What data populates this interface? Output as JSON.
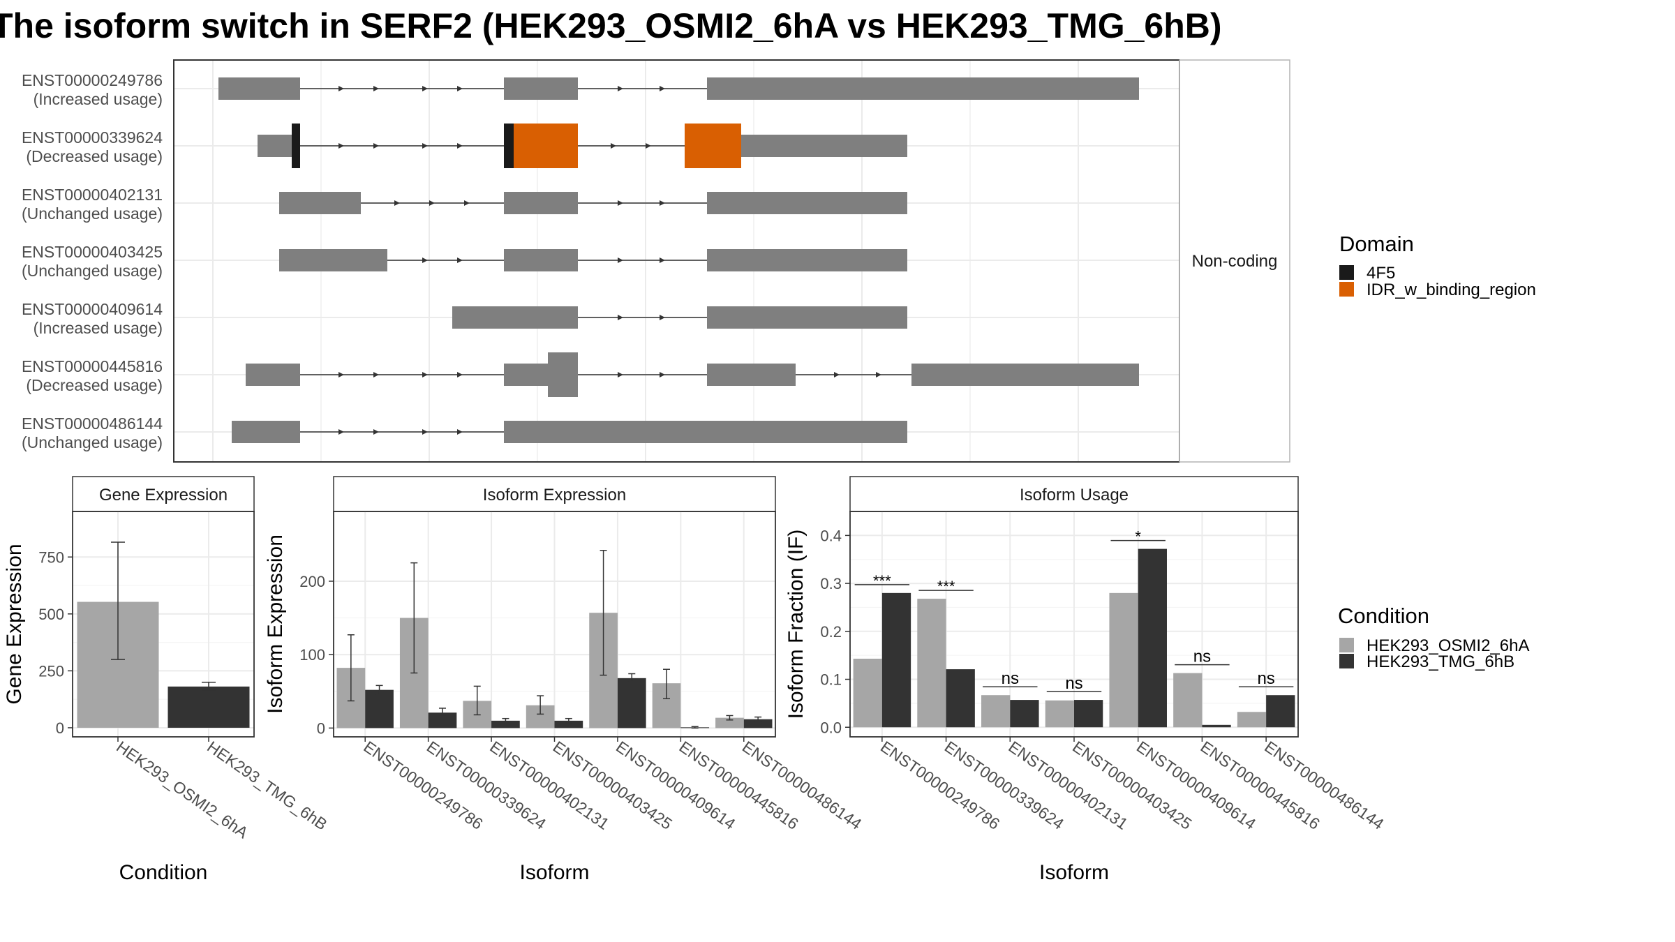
{
  "title": "The isoform switch in SERF2 (HEK293_OSMI2_6hA vs HEK293_TMG_6hB)",
  "colors": {
    "exon": "#7f7f7f",
    "domain_4F5": "#1a1a1a",
    "domain_IDR": "#d95f02",
    "cond_A": "#a6a6a6",
    "cond_B": "#333333",
    "grid": "#ebebeb",
    "strip": "#ffffff"
  },
  "structure": {
    "facet_label": "Non-coding",
    "isoforms": [
      {
        "id": "ENST00000249786",
        "status": "(Increased usage)"
      },
      {
        "id": "ENST00000339624",
        "status": "(Decreased usage)"
      },
      {
        "id": "ENST00000402131",
        "status": "(Unchanged usage)"
      },
      {
        "id": "ENST00000403425",
        "status": "(Unchanged usage)"
      },
      {
        "id": "ENST00000409614",
        "status": "(Increased usage)"
      },
      {
        "id": "ENST00000445816",
        "status": "(Decreased usage)"
      },
      {
        "id": "ENST00000486144",
        "status": "(Unchanged usage)"
      }
    ]
  },
  "legend_domain": {
    "title": "Domain",
    "items": [
      {
        "label": "4F5",
        "color": "#1a1a1a"
      },
      {
        "label": "IDR_w_binding_region",
        "color": "#d95f02"
      }
    ]
  },
  "legend_condition": {
    "title": "Condition",
    "items": [
      {
        "label": "HEK293_OSMI2_6hA",
        "color": "#a6a6a6"
      },
      {
        "label": "HEK293_TMG_6hB",
        "color": "#333333"
      }
    ]
  },
  "chart_data": [
    {
      "type": "bar",
      "title": "Gene Expression",
      "xlabel": "Condition",
      "ylabel": "Gene Expression",
      "categories": [
        "HEK293_OSMI2_6hA",
        "HEK293_TMG_6hB"
      ],
      "values": [
        553,
        181
      ],
      "error": [
        [
          300,
          815
        ],
        [
          165,
          200
        ]
      ],
      "yticks": [
        0,
        250,
        500,
        750
      ],
      "ylim": [
        -40,
        950
      ]
    },
    {
      "type": "bar",
      "title": "Isoform Expression",
      "xlabel": "Isoform",
      "ylabel": "Isoform Expression",
      "categories": [
        "ENST00000249786",
        "ENST00000339624",
        "ENST00000402131",
        "ENST00000403425",
        "ENST00000409614",
        "ENST00000445816",
        "ENST00000486144"
      ],
      "series": [
        {
          "name": "HEK293_OSMI2_6hA",
          "values": [
            82,
            150,
            37,
            31,
            157,
            61,
            14
          ],
          "error": [
            [
              37,
              127
            ],
            [
              75,
              225
            ],
            [
              18,
              57
            ],
            [
              19,
              44
            ],
            [
              72,
              242
            ],
            [
              40,
              80
            ],
            [
              11,
              17
            ]
          ]
        },
        {
          "name": "HEK293_TMG_6hB",
          "values": [
            52,
            21,
            10,
            10,
            68,
            1,
            12
          ],
          "error": [
            [
              46,
              58
            ],
            [
              16,
              27
            ],
            [
              6,
              13
            ],
            [
              7,
              13
            ],
            [
              63,
              74
            ],
            [
              0,
              2
            ],
            [
              9,
              15
            ]
          ]
        }
      ],
      "yticks": [
        0,
        100,
        200
      ],
      "ylim": [
        -12,
        295
      ]
    },
    {
      "type": "bar",
      "title": "Isoform Usage",
      "xlabel": "Isoform",
      "ylabel": "Isoform Fraction (IF)",
      "categories": [
        "ENST00000249786",
        "ENST00000339624",
        "ENST00000402131",
        "ENST00000403425",
        "ENST00000409614",
        "ENST00000445816",
        "ENST00000486144"
      ],
      "series": [
        {
          "name": "HEK293_OSMI2_6hA",
          "values": [
            0.143,
            0.268,
            0.067,
            0.056,
            0.28,
            0.113,
            0.032
          ]
        },
        {
          "name": "HEK293_TMG_6hB",
          "values": [
            0.28,
            0.121,
            0.057,
            0.057,
            0.372,
            0.005,
            0.067
          ]
        }
      ],
      "significance": [
        "***",
        "***",
        "ns",
        "ns",
        "*",
        "ns",
        "ns"
      ],
      "yticks": [
        0.0,
        0.1,
        0.2,
        0.3,
        0.4
      ],
      "ylim": [
        -0.02,
        0.45
      ]
    }
  ]
}
